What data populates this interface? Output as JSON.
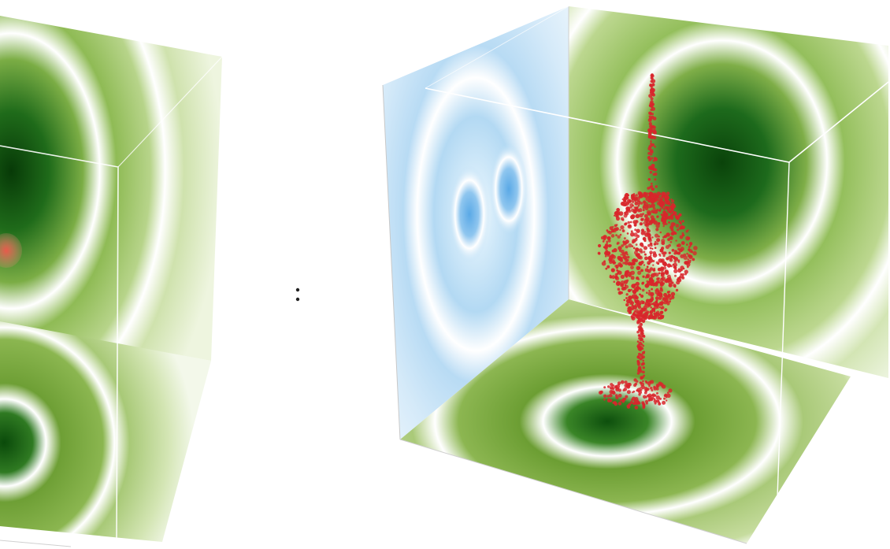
{
  "colors": {
    "background": "#ffffff",
    "wall_green_dark": "#0f4d0f",
    "wall_green_mid": "#6fa33a",
    "wall_green_light": "#e6f0cc",
    "wall_blue_mid": "#a9d2f0",
    "wall_blue_light": "#e8f4fc",
    "particles_red": "#d8262b",
    "box_edge": "#ffffff",
    "frame_line": "#c9c9c9"
  },
  "panels": [
    {
      "name": "left-panel",
      "cropped": true
    },
    {
      "name": "right-panel",
      "cropped": false
    }
  ],
  "divider": {
    "icon": "drag-handle-icon"
  }
}
